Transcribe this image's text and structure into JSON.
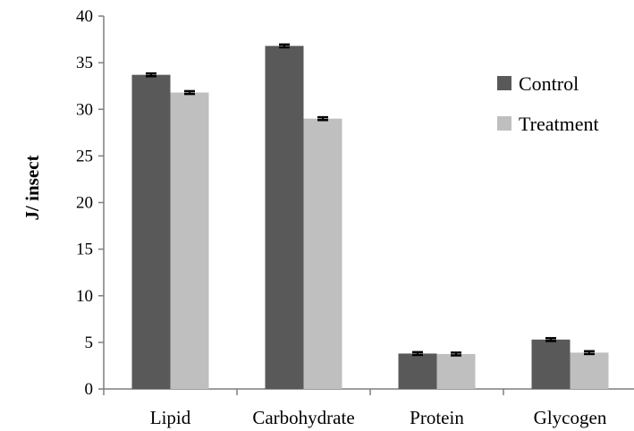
{
  "chart_data": {
    "type": "bar",
    "categories": [
      "Lipid",
      "Carbohydrate",
      "Protein",
      "Glycogen"
    ],
    "series": [
      {
        "name": "Control",
        "values": [
          33.7,
          36.8,
          3.8,
          5.3
        ],
        "errors": [
          0.15,
          0.15,
          0.15,
          0.15
        ],
        "color": "#595959"
      },
      {
        "name": "Treatment",
        "values": [
          31.8,
          29.0,
          3.75,
          3.9
        ],
        "errors": [
          0.15,
          0.15,
          0.15,
          0.15
        ],
        "color": "#bfbfbf"
      }
    ],
    "ylabel": "J/ insect",
    "ylim": [
      0,
      40
    ],
    "yticks": [
      0,
      5,
      10,
      15,
      20,
      25,
      30,
      35,
      40
    ],
    "grid": false,
    "legend_position": "top-right"
  }
}
